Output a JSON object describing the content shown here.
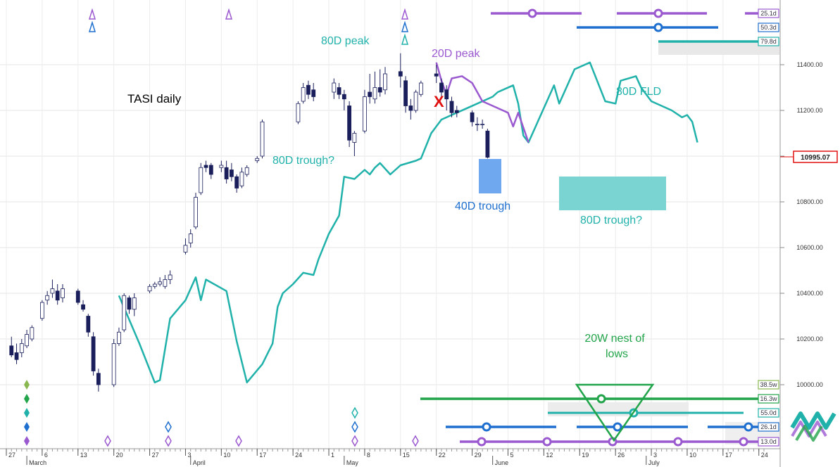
{
  "chart_data": {
    "type": "candlestick",
    "title": "TASI daily",
    "ylim": [
      9880,
      11500
    ],
    "y_ticks": [
      "11400.00",
      "11200.00",
      "11000.00",
      "10800.00",
      "10600.00",
      "10400.00",
      "10200.00",
      "10000.00"
    ],
    "y_tick_values": [
      11400,
      11200,
      11000,
      10800,
      10600,
      10400,
      10200,
      10000
    ],
    "last_price": "10995.07",
    "x_ticks": [
      {
        "day": 0,
        "label": "27"
      },
      {
        "day": 7,
        "label": "6"
      },
      {
        "day": 14,
        "label": "13"
      },
      {
        "day": 21,
        "label": "20"
      },
      {
        "day": 28,
        "label": "27"
      },
      {
        "day": 35,
        "label": "3"
      },
      {
        "day": 42,
        "label": "10"
      },
      {
        "day": 49,
        "label": "17"
      },
      {
        "day": 56,
        "label": "24"
      },
      {
        "day": 63,
        "label": "1"
      },
      {
        "day": 70,
        "label": "8"
      },
      {
        "day": 77,
        "label": "15"
      },
      {
        "day": 84,
        "label": "22"
      },
      {
        "day": 91,
        "label": "29"
      },
      {
        "day": 98,
        "label": "5"
      },
      {
        "day": 105,
        "label": "12"
      },
      {
        "day": 112,
        "label": "19"
      },
      {
        "day": 119,
        "label": "26"
      },
      {
        "day": 126,
        "label": "3"
      },
      {
        "day": 133,
        "label": "10"
      },
      {
        "day": 140,
        "label": "17"
      },
      {
        "day": 147,
        "label": "24"
      }
    ],
    "months": [
      {
        "day": 4,
        "label": "March"
      },
      {
        "day": 36,
        "label": "April"
      },
      {
        "day": 66,
        "label": "May"
      },
      {
        "day": 95,
        "label": "June"
      },
      {
        "day": 125,
        "label": "July"
      }
    ],
    "candles": [
      {
        "d": 1,
        "o": 10170,
        "h": 10210,
        "l": 10120,
        "c": 10130
      },
      {
        "d": 2,
        "o": 10140,
        "h": 10180,
        "l": 10090,
        "c": 10110
      },
      {
        "d": 3,
        "o": 10140,
        "h": 10200,
        "l": 10120,
        "c": 10180
      },
      {
        "d": 4,
        "o": 10170,
        "h": 10240,
        "l": 10160,
        "c": 10220
      },
      {
        "d": 5,
        "o": 10200,
        "h": 10260,
        "l": 10190,
        "c": 10250
      },
      {
        "d": 7,
        "o": 10290,
        "h": 10370,
        "l": 10280,
        "c": 10360
      },
      {
        "d": 8,
        "o": 10370,
        "h": 10410,
        "l": 10350,
        "c": 10390
      },
      {
        "d": 9,
        "o": 10400,
        "h": 10460,
        "l": 10380,
        "c": 10420
      },
      {
        "d": 10,
        "o": 10410,
        "h": 10440,
        "l": 10350,
        "c": 10370
      },
      {
        "d": 11,
        "o": 10380,
        "h": 10440,
        "l": 10360,
        "c": 10420
      },
      {
        "d": 14,
        "o": 10410,
        "h": 10420,
        "l": 10350,
        "c": 10360
      },
      {
        "d": 15,
        "o": 10350,
        "h": 10370,
        "l": 10320,
        "c": 10330
      },
      {
        "d": 16,
        "o": 10300,
        "h": 10310,
        "l": 10210,
        "c": 10230
      },
      {
        "d": 17,
        "o": 10210,
        "h": 10230,
        "l": 10040,
        "c": 10060
      },
      {
        "d": 18,
        "o": 10050,
        "h": 10070,
        "l": 9970,
        "c": 10000
      },
      {
        "d": 21,
        "o": 10000,
        "h": 10200,
        "l": 9990,
        "c": 10180
      },
      {
        "d": 22,
        "o": 10180,
        "h": 10250,
        "l": 10170,
        "c": 10230
      },
      {
        "d": 23,
        "o": 10240,
        "h": 10400,
        "l": 10230,
        "c": 10390
      },
      {
        "d": 24,
        "o": 10380,
        "h": 10390,
        "l": 10310,
        "c": 10330
      },
      {
        "d": 25,
        "o": 10330,
        "h": 10400,
        "l": 10300,
        "c": 10380
      },
      {
        "d": 28,
        "o": 10410,
        "h": 10440,
        "l": 10400,
        "c": 10430
      },
      {
        "d": 29,
        "o": 10430,
        "h": 10450,
        "l": 10420,
        "c": 10440
      },
      {
        "d": 30,
        "o": 10440,
        "h": 10470,
        "l": 10430,
        "c": 10450
      },
      {
        "d": 31,
        "o": 10430,
        "h": 10480,
        "l": 10420,
        "c": 10460
      },
      {
        "d": 32,
        "o": 10460,
        "h": 10500,
        "l": 10440,
        "c": 10480
      },
      {
        "d": 35,
        "o": 10580,
        "h": 10640,
        "l": 10570,
        "c": 10610
      },
      {
        "d": 36,
        "o": 10620,
        "h": 10680,
        "l": 10600,
        "c": 10660
      },
      {
        "d": 37,
        "o": 10690,
        "h": 10840,
        "l": 10680,
        "c": 10820
      },
      {
        "d": 38,
        "o": 10840,
        "h": 10970,
        "l": 10830,
        "c": 10950
      },
      {
        "d": 39,
        "o": 10960,
        "h": 10980,
        "l": 10930,
        "c": 10950
      },
      {
        "d": 40,
        "o": 10960,
        "h": 10970,
        "l": 10900,
        "c": 10920
      },
      {
        "d": 42,
        "o": 10950,
        "h": 10980,
        "l": 10930,
        "c": 10960
      },
      {
        "d": 43,
        "o": 10950,
        "h": 10980,
        "l": 10880,
        "c": 10900
      },
      {
        "d": 44,
        "o": 10940,
        "h": 10970,
        "l": 10890,
        "c": 10910
      },
      {
        "d": 45,
        "o": 10910,
        "h": 10920,
        "l": 10840,
        "c": 10860
      },
      {
        "d": 46,
        "o": 10870,
        "h": 10950,
        "l": 10860,
        "c": 10930
      },
      {
        "d": 47,
        "o": 10920,
        "h": 10960,
        "l": 10910,
        "c": 10950
      },
      {
        "d": 49,
        "o": 10980,
        "h": 11000,
        "l": 10970,
        "c": 10990
      },
      {
        "d": 50,
        "o": 11000,
        "h": 11160,
        "l": 10990,
        "c": 11150
      },
      {
        "d": 57,
        "o": 11150,
        "h": 11240,
        "l": 11140,
        "c": 11230
      },
      {
        "d": 58,
        "o": 11240,
        "h": 11320,
        "l": 11230,
        "c": 11300
      },
      {
        "d": 59,
        "o": 11310,
        "h": 11330,
        "l": 11250,
        "c": 11270
      },
      {
        "d": 60,
        "o": 11290,
        "h": 11320,
        "l": 11240,
        "c": 11260
      },
      {
        "d": 64,
        "o": 11280,
        "h": 11340,
        "l": 11250,
        "c": 11320
      },
      {
        "d": 65,
        "o": 11300,
        "h": 11320,
        "l": 11250,
        "c": 11270
      },
      {
        "d": 66,
        "o": 11270,
        "h": 11290,
        "l": 11200,
        "c": 11250
      },
      {
        "d": 67,
        "o": 11220,
        "h": 11240,
        "l": 11040,
        "c": 11070
      },
      {
        "d": 68,
        "o": 11060,
        "h": 11110,
        "l": 11000,
        "c": 11100
      },
      {
        "d": 70,
        "o": 11110,
        "h": 11290,
        "l": 11100,
        "c": 11260
      },
      {
        "d": 71,
        "o": 11280,
        "h": 11360,
        "l": 11230,
        "c": 11260
      },
      {
        "d": 72,
        "o": 11250,
        "h": 11370,
        "l": 11230,
        "c": 11300
      },
      {
        "d": 73,
        "o": 11300,
        "h": 11380,
        "l": 11260,
        "c": 11280
      },
      {
        "d": 74,
        "o": 11290,
        "h": 11390,
        "l": 11270,
        "c": 11360
      },
      {
        "d": 77,
        "o": 11370,
        "h": 11450,
        "l": 11300,
        "c": 11350
      },
      {
        "d": 78,
        "o": 11330,
        "h": 11350,
        "l": 11190,
        "c": 11220
      },
      {
        "d": 79,
        "o": 11220,
        "h": 11250,
        "l": 11160,
        "c": 11200
      },
      {
        "d": 80,
        "o": 11200,
        "h": 11290,
        "l": 11190,
        "c": 11280
      },
      {
        "d": 81,
        "o": 11270,
        "h": 11330,
        "l": 11260,
        "c": 11320
      },
      {
        "d": 84,
        "o": 11360,
        "h": 11400,
        "l": 11320,
        "c": 11350
      },
      {
        "d": 85,
        "o": 11320,
        "h": 11340,
        "l": 11260,
        "c": 11280
      },
      {
        "d": 86,
        "o": 11290,
        "h": 11310,
        "l": 11200,
        "c": 11250
      },
      {
        "d": 87,
        "o": 11240,
        "h": 11260,
        "l": 11170,
        "c": 11190
      },
      {
        "d": 88,
        "o": 11200,
        "h": 11220,
        "l": 11170,
        "c": 11190
      },
      {
        "d": 91,
        "o": 11190,
        "h": 11200,
        "l": 11130,
        "c": 11150
      },
      {
        "d": 92,
        "o": 11140,
        "h": 11170,
        "l": 11110,
        "c": 11140
      },
      {
        "d": 93,
        "o": 11140,
        "h": 11160,
        "l": 11120,
        "c": 11140
      },
      {
        "d": 94,
        "o": 11110,
        "h": 11120,
        "l": 10990,
        "c": 10995
      }
    ],
    "series": [
      {
        "name": "80D FLD",
        "color": "#20b2aa",
        "points": [
          [
            22,
            10390
          ],
          [
            26,
            10180
          ],
          [
            29,
            10010
          ],
          [
            30,
            10020
          ],
          [
            32,
            10290
          ],
          [
            35,
            10370
          ],
          [
            37,
            10470
          ],
          [
            38,
            10370
          ],
          [
            39,
            10460
          ],
          [
            43,
            10410
          ],
          [
            45,
            10190
          ],
          [
            47,
            10010
          ],
          [
            50,
            10090
          ],
          [
            52,
            10180
          ],
          [
            53,
            10340
          ],
          [
            54,
            10400
          ],
          [
            56,
            10440
          ],
          [
            58,
            10490
          ],
          [
            60,
            10480
          ],
          [
            61,
            10550
          ],
          [
            63,
            10660
          ],
          [
            65,
            10740
          ],
          [
            66,
            10910
          ],
          [
            68,
            10900
          ],
          [
            70,
            10940
          ],
          [
            71,
            10920
          ],
          [
            72,
            10950
          ],
          [
            73,
            10970
          ],
          [
            75,
            10920
          ],
          [
            77,
            10960
          ],
          [
            80,
            10980
          ],
          [
            81,
            10990
          ],
          [
            83,
            11100
          ],
          [
            85,
            11160
          ],
          [
            90,
            11210
          ],
          [
            95,
            11260
          ],
          [
            96,
            11280
          ],
          [
            99,
            11310
          ],
          [
            100,
            11230
          ],
          [
            101,
            11090
          ],
          [
            102,
            11060
          ],
          [
            107,
            11310
          ],
          [
            108,
            11230
          ],
          [
            111,
            11380
          ],
          [
            114,
            11410
          ],
          [
            117,
            11240
          ],
          [
            119,
            11230
          ],
          [
            120,
            11330
          ],
          [
            123,
            11350
          ],
          [
            124,
            11300
          ],
          [
            126,
            11240
          ],
          [
            130,
            11200
          ],
          [
            132,
            11170
          ],
          [
            133,
            11180
          ],
          [
            134,
            11150
          ],
          [
            135,
            11060
          ]
        ]
      },
      {
        "name": "20D FLD",
        "color": "#9b59d0",
        "points": [
          [
            84,
            11410
          ],
          [
            85,
            11330
          ],
          [
            86,
            11270
          ],
          [
            87,
            11340
          ],
          [
            89,
            11350
          ],
          [
            91,
            11320
          ],
          [
            93,
            11240
          ],
          [
            97,
            11200
          ],
          [
            98,
            11190
          ],
          [
            99,
            11130
          ],
          [
            100,
            11190
          ],
          [
            102,
            11060
          ]
        ]
      }
    ],
    "annotations": [
      {
        "text": "TASI daily",
        "color": "#000000"
      },
      {
        "text": "80D peak",
        "color": "#20b2aa"
      },
      {
        "text": "20D peak",
        "color": "#9b59d0"
      },
      {
        "text": "80D FLD",
        "color": "#20b2aa"
      },
      {
        "text": "80D trough?",
        "color": "#20b2aa"
      },
      {
        "text": "40D trough",
        "color": "#1e6fcf"
      },
      {
        "text": "80D trough?",
        "color": "#20b2aa"
      },
      {
        "text": "20W nest of",
        "color": "#22a44a"
      },
      {
        "text": "lows",
        "color": "#22a44a"
      },
      {
        "text": "X",
        "color": "#e01010"
      }
    ],
    "cycle_badges": [
      {
        "label": "25.1d",
        "color": "#9b59d0"
      },
      {
        "label": "50.3d",
        "color": "#1e6fcf"
      },
      {
        "label": "79.8d",
        "color": "#20b2aa"
      },
      {
        "label": "38.5w",
        "color": "#8ab850"
      },
      {
        "label": "16.3w",
        "color": "#22a44a"
      },
      {
        "label": "55.0d",
        "color": "#20b2aa"
      },
      {
        "label": "26.1d",
        "color": "#1e6fcf"
      },
      {
        "label": "13.0d",
        "color": "#9b59d0"
      }
    ],
    "colors": {
      "up_candle": "#ffffff",
      "down_candle": "#1a1f5c",
      "fld80": "#20b2aa",
      "fld20": "#9b59d0",
      "blue": "#1e6fcf",
      "green": "#22a44a",
      "red": "#e01010"
    }
  }
}
